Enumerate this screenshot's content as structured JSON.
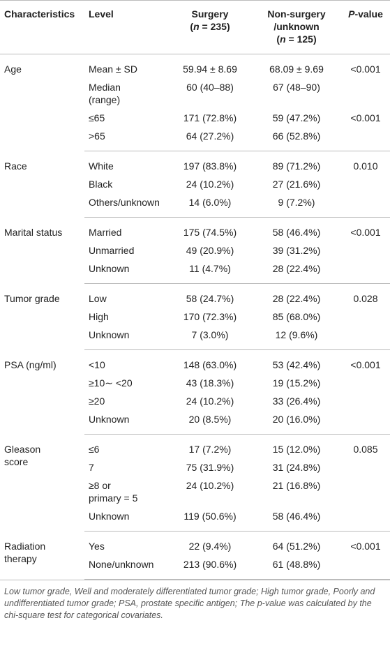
{
  "header": [
    {
      "lines": [
        [
          {
            "text": "Characteristics"
          }
        ]
      ]
    },
    {
      "lines": [
        [
          {
            "text": "Level"
          }
        ]
      ]
    },
    {
      "lines": [
        [
          {
            "text": "Surgery"
          }
        ],
        [
          {
            "text": "("
          },
          {
            "text": "n",
            "italic": true
          },
          {
            "text": " = 235)"
          }
        ]
      ]
    },
    {
      "lines": [
        [
          {
            "text": "Non-surgery"
          }
        ],
        [
          {
            "text": "/unknown"
          }
        ],
        [
          {
            "text": "("
          },
          {
            "text": "n",
            "italic": true
          },
          {
            "text": " = 125)"
          }
        ]
      ]
    },
    {
      "lines": [
        [
          {
            "text": "P",
            "italic": true
          },
          {
            "text": "-value"
          }
        ]
      ]
    }
  ],
  "groups": [
    {
      "characteristic": "Age",
      "rows": [
        {
          "level": "Mean ± SD",
          "surgery": "59.94 ± 8.69",
          "nonsurgery": "68.09 ± 9.69",
          "p": "<0.001"
        },
        {
          "level": "Median\n(range)",
          "surgery": "60 (40–88)",
          "nonsurgery": "67 (48–90)"
        },
        {
          "level": "≤65",
          "surgery": "171 (72.8%)",
          "nonsurgery": "59 (47.2%)",
          "p": "<0.001"
        },
        {
          "level": ">65",
          "surgery": "64 (27.2%)",
          "nonsurgery": "66 (52.8%)"
        }
      ]
    },
    {
      "characteristic": "Race",
      "rows": [
        {
          "level": "White",
          "surgery": "197 (83.8%)",
          "nonsurgery": "89 (71.2%)",
          "p": "0.010"
        },
        {
          "level": "Black",
          "surgery": "24 (10.2%)",
          "nonsurgery": "27 (21.6%)"
        },
        {
          "level": "Others/unknown",
          "surgery": "14 (6.0%)",
          "nonsurgery": "9 (7.2%)"
        }
      ]
    },
    {
      "characteristic": "Marital status",
      "rows": [
        {
          "level": "Married",
          "surgery": "175 (74.5%)",
          "nonsurgery": "58 (46.4%)",
          "p": "<0.001"
        },
        {
          "level": "Unmarried",
          "surgery": "49 (20.9%)",
          "nonsurgery": "39 (31.2%)"
        },
        {
          "level": "Unknown",
          "surgery": "11 (4.7%)",
          "nonsurgery": "28 (22.4%)"
        }
      ]
    },
    {
      "characteristic": "Tumor grade",
      "rows": [
        {
          "level": "Low",
          "surgery": "58 (24.7%)",
          "nonsurgery": "28 (22.4%)",
          "p": "0.028"
        },
        {
          "level": "High",
          "surgery": "170 (72.3%)",
          "nonsurgery": "85 (68.0%)"
        },
        {
          "level": "Unknown",
          "surgery": "7 (3.0%)",
          "nonsurgery": "12 (9.6%)"
        }
      ]
    },
    {
      "characteristic": "PSA (ng/ml)",
      "rows": [
        {
          "level": "<10",
          "surgery": "148 (63.0%)",
          "nonsurgery": "53 (42.4%)",
          "p": "<0.001"
        },
        {
          "level": "≥10∼ <20",
          "surgery": "43 (18.3%)",
          "nonsurgery": "19 (15.2%)"
        },
        {
          "level": "≥20",
          "surgery": "24 (10.2%)",
          "nonsurgery": "33 (26.4%)"
        },
        {
          "level": "Unknown",
          "surgery": "20 (8.5%)",
          "nonsurgery": "20 (16.0%)"
        }
      ]
    },
    {
      "characteristic": "Gleason\nscore",
      "rows": [
        {
          "level": "≤6",
          "surgery": "17 (7.2%)",
          "nonsurgery": "15 (12.0%)",
          "p": "0.085"
        },
        {
          "level": "7",
          "surgery": "75 (31.9%)",
          "nonsurgery": "31 (24.8%)"
        },
        {
          "level": "≥8 or\nprimary = 5",
          "surgery": "24 (10.2%)",
          "nonsurgery": "21 (16.8%)"
        },
        {
          "level": "Unknown",
          "surgery": "119 (50.6%)",
          "nonsurgery": "58 (46.4%)"
        }
      ]
    },
    {
      "characteristic": "Radiation\ntherapy",
      "rows": [
        {
          "level": "Yes",
          "surgery": "22 (9.4%)",
          "nonsurgery": "64 (51.2%)",
          "p": "<0.001"
        },
        {
          "level": "None/unknown",
          "surgery": "213 (90.6%)",
          "nonsurgery": "61 (48.8%)"
        }
      ]
    }
  ],
  "footnote": "Low tumor grade, Well and moderately differentiated tumor grade; High tumor grade, Poorly and undifferentiated tumor grade; PSA, prostate specific antigen; The p-value was calculated by the chi-square test for categorical covariates."
}
